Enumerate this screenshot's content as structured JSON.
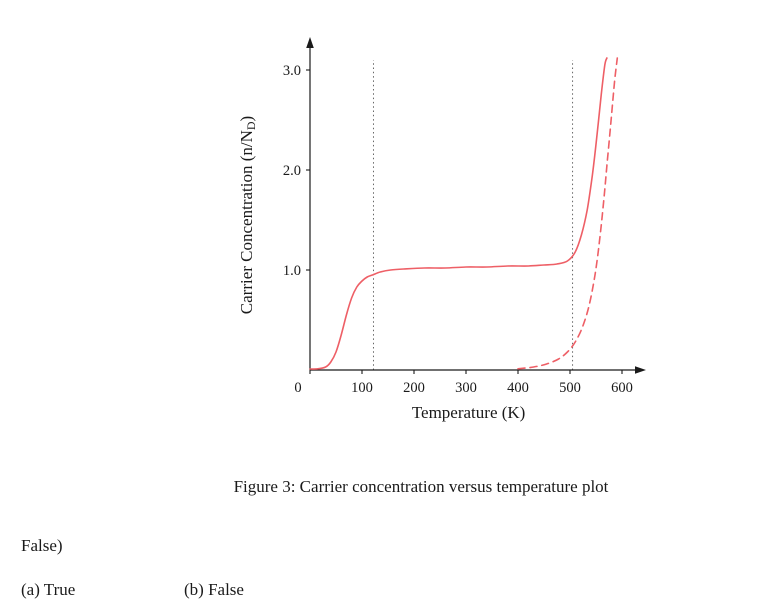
{
  "figure": {
    "caption": "Figure 3: Carrier concentration versus temperature plot"
  },
  "question": {
    "stray_text": "False)",
    "options": [
      {
        "label": "(a) True"
      },
      {
        "label": "(b) False"
      }
    ]
  },
  "colors": {
    "curve": "#ee5f66",
    "axis": "#1a1a1a",
    "vline": "#555555"
  },
  "chart_data": {
    "type": "line",
    "title": "",
    "xlabel": "Temperature (K)",
    "ylabel": "Carrier Concentration (n/N_D)",
    "xlim": [
      0,
      660
    ],
    "ylim": [
      0,
      3.3
    ],
    "x_ticks": [
      0,
      100,
      200,
      300,
      400,
      500,
      600
    ],
    "y_ticks": [
      1.0,
      2.0,
      3.0
    ],
    "vlines": [
      122,
      505
    ],
    "grid": false,
    "legend": "none",
    "series": [
      {
        "name": "total-carrier-concentration",
        "style": "solid",
        "points": [
          [
            0,
            0.01
          ],
          [
            15,
            0.012
          ],
          [
            30,
            0.03
          ],
          [
            40,
            0.08
          ],
          [
            50,
            0.18
          ],
          [
            60,
            0.35
          ],
          [
            70,
            0.55
          ],
          [
            80,
            0.72
          ],
          [
            90,
            0.83
          ],
          [
            100,
            0.89
          ],
          [
            110,
            0.93
          ],
          [
            120,
            0.95
          ],
          [
            135,
            0.98
          ],
          [
            155,
            1.0
          ],
          [
            180,
            1.01
          ],
          [
            220,
            1.02
          ],
          [
            260,
            1.02
          ],
          [
            300,
            1.03
          ],
          [
            340,
            1.03
          ],
          [
            380,
            1.04
          ],
          [
            420,
            1.04
          ],
          [
            450,
            1.05
          ],
          [
            475,
            1.06
          ],
          [
            495,
            1.09
          ],
          [
            510,
            1.18
          ],
          [
            522,
            1.35
          ],
          [
            533,
            1.6
          ],
          [
            543,
            1.95
          ],
          [
            552,
            2.35
          ],
          [
            560,
            2.75
          ],
          [
            567,
            3.05
          ],
          [
            571,
            3.12
          ]
        ]
      },
      {
        "name": "intrinsic-carrier-concentration",
        "style": "dashed",
        "points": [
          [
            400,
            0.012
          ],
          [
            430,
            0.03
          ],
          [
            455,
            0.06
          ],
          [
            478,
            0.11
          ],
          [
            495,
            0.18
          ],
          [
            510,
            0.28
          ],
          [
            524,
            0.43
          ],
          [
            537,
            0.65
          ],
          [
            548,
            0.95
          ],
          [
            557,
            1.3
          ],
          [
            565,
            1.7
          ],
          [
            572,
            2.1
          ],
          [
            579,
            2.5
          ],
          [
            586,
            2.9
          ],
          [
            591,
            3.12
          ]
        ]
      }
    ]
  }
}
